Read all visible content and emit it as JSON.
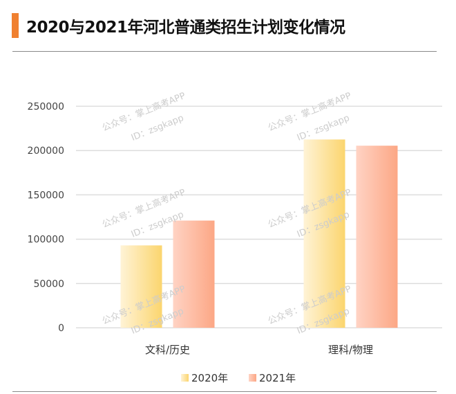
{
  "title": "2020与2021年河北普通类招生计划变化情况",
  "watermark": {
    "line1": "公众号：掌上高考APP",
    "line2": "ID：zsgkapp"
  },
  "chart_data": {
    "type": "bar",
    "title": "2020与2021年河北普通类招生计划变化情况",
    "categories": [
      "文科/历史",
      "理科/物理"
    ],
    "series": [
      {
        "name": "2020年",
        "values": [
          93000,
          212500
        ],
        "color_from": "#fff3d6",
        "color_to": "#fbd56e"
      },
      {
        "name": "2021年",
        "values": [
          121000,
          205500
        ],
        "color_from": "#ffd3c4",
        "color_to": "#fca785"
      }
    ],
    "ylim": [
      0,
      250000
    ],
    "yticks": [
      "0",
      "50000",
      "100000",
      "150000",
      "200000",
      "250000"
    ],
    "grid": true,
    "legend": "bottom",
    "xlabel": "",
    "ylabel": ""
  }
}
